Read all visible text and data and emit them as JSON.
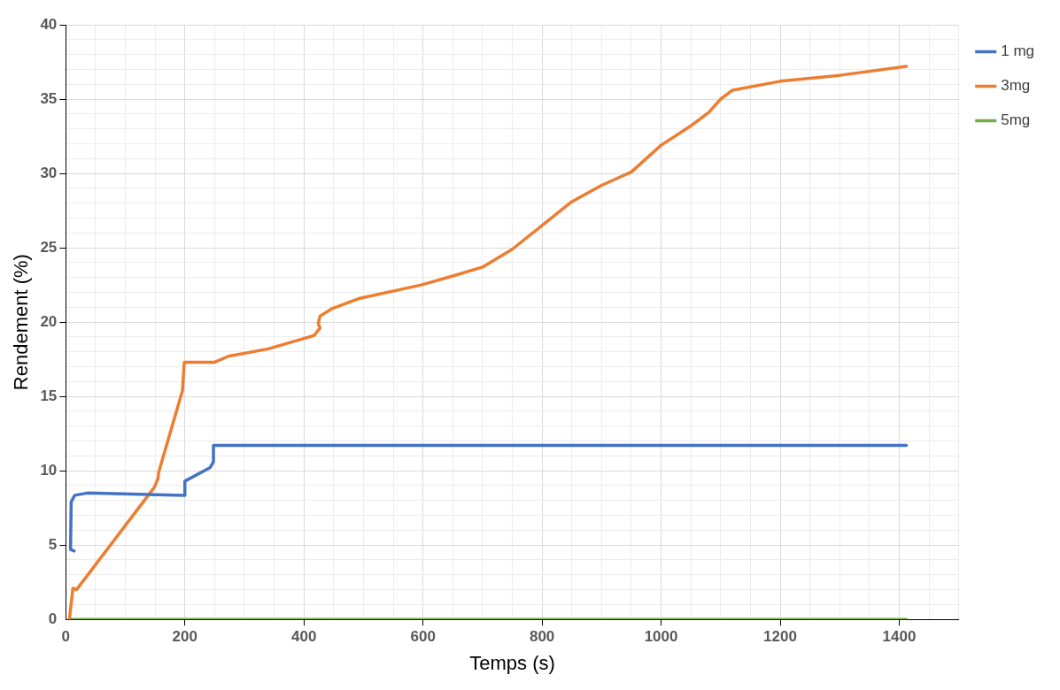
{
  "chart_data": {
    "type": "line",
    "xlabel": "Temps (s)",
    "ylabel": "Rendement (%)",
    "legend": "top right",
    "grid": true,
    "marker": "none",
    "line_style": "solid",
    "xlim": [
      0,
      1500
    ],
    "ylim": [
      0,
      40
    ],
    "xticks": [
      0,
      {
        "value": 50,
        "label": null
      },
      {
        "value": 100,
        "label": null
      },
      {
        "value": 150,
        "label": null
      },
      200,
      {
        "value": 250,
        "label": null
      },
      {
        "value": 300,
        "label": null
      },
      {
        "value": 350,
        "label": null
      },
      400,
      {
        "value": 450,
        "label": null
      },
      {
        "value": 500,
        "label": null
      },
      {
        "value": 550,
        "label": null
      },
      600,
      {
        "value": 650,
        "label": null
      },
      {
        "value": 700,
        "label": null
      },
      {
        "value": 750,
        "label": null
      },
      800,
      {
        "value": 850,
        "label": null
      },
      {
        "value": 900,
        "label": null
      },
      {
        "value": 950,
        "label": null
      },
      1000,
      {
        "value": 1050,
        "label": null
      },
      {
        "value": 1100,
        "label": null
      },
      {
        "value": 1150,
        "label": null
      },
      1200,
      {
        "value": 1250,
        "label": null
      },
      {
        "value": 1300,
        "label": null
      },
      {
        "value": 1350,
        "label": null
      },
      1400,
      {
        "value": 1450,
        "label": null
      },
      {
        "value": 1500,
        "label": null
      }
    ],
    "yticks": [
      0,
      {
        "value": 1,
        "label": null
      },
      {
        "value": 2,
        "label": null
      },
      {
        "value": 3,
        "label": null
      },
      {
        "value": 4,
        "label": null
      },
      5,
      {
        "value": 6,
        "label": null
      },
      {
        "value": 7,
        "label": null
      },
      {
        "value": 8,
        "label": null
      },
      {
        "value": 9,
        "label": null
      },
      10,
      {
        "value": 11,
        "label": null
      },
      {
        "value": 12,
        "label": null
      },
      {
        "value": 13,
        "label": null
      },
      {
        "value": 14,
        "label": null
      },
      15,
      {
        "value": 16,
        "label": null
      },
      {
        "value": 17,
        "label": null
      },
      {
        "value": 18,
        "label": null
      },
      {
        "value": 19,
        "label": null
      },
      20,
      {
        "value": 21,
        "label": null
      },
      {
        "value": 22,
        "label": null
      },
      {
        "value": 23,
        "label": null
      },
      {
        "value": 24,
        "label": null
      },
      25,
      {
        "value": 26,
        "label": null
      },
      {
        "value": 27,
        "label": null
      },
      {
        "value": 28,
        "label": null
      },
      {
        "value": 29,
        "label": null
      },
      30,
      {
        "value": 31,
        "label": null
      },
      {
        "value": 32,
        "label": null
      },
      {
        "value": 33,
        "label": null
      },
      {
        "value": 34,
        "label": null
      },
      35,
      {
        "value": 36,
        "label": null
      },
      {
        "value": 37,
        "label": null
      },
      {
        "value": 38,
        "label": null
      },
      {
        "value": 39,
        "label": null
      },
      40
    ],
    "series": [
      {
        "name": "1 mg",
        "color": "#4472c4",
        "x": [
          14,
          8,
          9,
          15,
          36,
          139,
          199,
          200,
          242,
          248,
          248,
          1412
        ],
        "values": [
          4.6,
          4.7,
          7.9,
          8.35,
          8.5,
          8.4,
          8.35,
          9.3,
          10.2,
          10.6,
          11.7,
          11.7
        ]
      },
      {
        "name": "3mg",
        "color": "#ed7d31",
        "x": [
          6,
          12,
          18,
          149,
          155,
          156,
          196,
          199,
          250,
          273,
          340,
          400,
          417,
          427,
          424,
          427,
          447,
          494,
          597,
          650,
          700,
          750,
          800,
          850,
          900,
          950,
          1000,
          1050,
          1080,
          1100,
          1120,
          1200,
          1300,
          1412
        ],
        "values": [
          0,
          2.1,
          2.0,
          8.9,
          9.5,
          9.9,
          15.4,
          17.3,
          17.3,
          17.7,
          18.2,
          18.9,
          19.1,
          19.6,
          19.9,
          20.4,
          20.9,
          21.6,
          22.5,
          23.1,
          23.7,
          24.9,
          26.5,
          28.1,
          29.2,
          30.1,
          31.9,
          33.2,
          34.1,
          35.0,
          35.6,
          36.2,
          36.6,
          37.2
        ]
      },
      {
        "name": "5mg",
        "color": "#70ad47",
        "x": [
          6,
          1412
        ],
        "values": [
          0,
          0
        ]
      }
    ]
  }
}
